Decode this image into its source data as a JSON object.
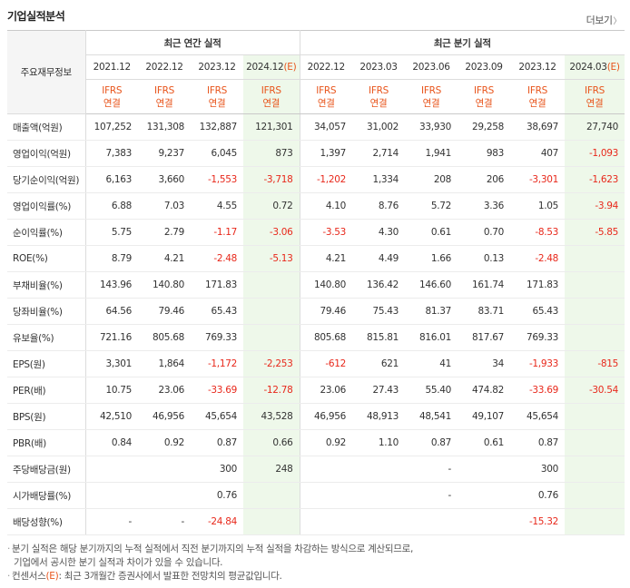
{
  "title": "기업실적분석",
  "more_label": "더보기",
  "header": {
    "row_label": "주요재무정보",
    "annual_group": "최근 연간 실적",
    "quarter_group": "최근 분기 실적",
    "annual_periods": [
      "2021.12",
      "2022.12",
      "2023.12",
      "2024.12"
    ],
    "quarter_periods": [
      "2022.12",
      "2023.03",
      "2023.06",
      "2023.09",
      "2023.12",
      "2024.03"
    ],
    "estimate_mark": "(E)",
    "ifrs": "IFRS",
    "consolidated": "연결"
  },
  "rows": [
    {
      "label": "매출액(억원)",
      "annual": [
        "107,252",
        "131,308",
        "132,887",
        "121,301"
      ],
      "quarter": [
        "34,057",
        "31,002",
        "33,930",
        "29,258",
        "38,697",
        "27,740"
      ]
    },
    {
      "label": "영업이익(억원)",
      "annual": [
        "7,383",
        "9,237",
        "6,045",
        "873"
      ],
      "quarter": [
        "1,397",
        "2,714",
        "1,941",
        "983",
        "407",
        "-1,093"
      ]
    },
    {
      "label": "당기순이익(억원)",
      "annual": [
        "6,163",
        "3,660",
        "-1,553",
        "-3,718"
      ],
      "quarter": [
        "-1,202",
        "1,334",
        "208",
        "206",
        "-3,301",
        "-1,623"
      ]
    },
    {
      "label": "영업이익률(%)",
      "annual": [
        "6.88",
        "7.03",
        "4.55",
        "0.72"
      ],
      "quarter": [
        "4.10",
        "8.76",
        "5.72",
        "3.36",
        "1.05",
        "-3.94"
      ]
    },
    {
      "label": "순이익률(%)",
      "annual": [
        "5.75",
        "2.79",
        "-1.17",
        "-3.06"
      ],
      "quarter": [
        "-3.53",
        "4.30",
        "0.61",
        "0.70",
        "-8.53",
        "-5.85"
      ]
    },
    {
      "label": "ROE(%)",
      "annual": [
        "8.79",
        "4.21",
        "-2.48",
        "-5.13"
      ],
      "quarter": [
        "4.21",
        "4.49",
        "1.66",
        "0.13",
        "-2.48",
        ""
      ]
    },
    {
      "label": "부채비율(%)",
      "annual": [
        "143.96",
        "140.80",
        "171.83",
        ""
      ],
      "quarter": [
        "140.80",
        "136.42",
        "146.60",
        "161.74",
        "171.83",
        ""
      ]
    },
    {
      "label": "당좌비율(%)",
      "annual": [
        "64.56",
        "79.46",
        "65.43",
        ""
      ],
      "quarter": [
        "79.46",
        "75.43",
        "81.37",
        "83.71",
        "65.43",
        ""
      ]
    },
    {
      "label": "유보율(%)",
      "annual": [
        "721.16",
        "805.68",
        "769.33",
        ""
      ],
      "quarter": [
        "805.68",
        "815.81",
        "816.01",
        "817.67",
        "769.33",
        ""
      ]
    },
    {
      "label": "EPS(원)",
      "annual": [
        "3,301",
        "1,864",
        "-1,172",
        "-2,253"
      ],
      "quarter": [
        "-612",
        "621",
        "41",
        "34",
        "-1,933",
        "-815"
      ]
    },
    {
      "label": "PER(배)",
      "annual": [
        "10.75",
        "23.06",
        "-33.69",
        "-12.78"
      ],
      "quarter": [
        "23.06",
        "27.43",
        "55.40",
        "474.82",
        "-33.69",
        "-30.54"
      ]
    },
    {
      "label": "BPS(원)",
      "annual": [
        "42,510",
        "46,956",
        "45,654",
        "43,528"
      ],
      "quarter": [
        "46,956",
        "48,913",
        "48,541",
        "49,107",
        "45,654",
        ""
      ]
    },
    {
      "label": "PBR(배)",
      "annual": [
        "0.84",
        "0.92",
        "0.87",
        "0.66"
      ],
      "quarter": [
        "0.92",
        "1.10",
        "0.87",
        "0.61",
        "0.87",
        ""
      ]
    },
    {
      "label": "주당배당금(원)",
      "annual": [
        "",
        "",
        "300",
        "248"
      ],
      "quarter": [
        "",
        "",
        "-",
        "",
        "300",
        ""
      ]
    },
    {
      "label": "시가배당률(%)",
      "annual": [
        "",
        "",
        "0.76",
        ""
      ],
      "quarter": [
        "",
        "",
        "-",
        "",
        "0.76",
        ""
      ]
    },
    {
      "label": "배당성향(%)",
      "annual": [
        "-",
        "-",
        "-24.84",
        ""
      ],
      "quarter": [
        "",
        "",
        "",
        "",
        "-15.32",
        ""
      ]
    }
  ],
  "notes": {
    "line1": "분기 실적은 해당 분기까지의 누적 실적에서 직전 분기까지의 누적 실적을 차감하는 방식으로 계산되므로,",
    "line2": "기업에서 공시한 분기 실적과 차이가 있을 수 있습니다.",
    "line3_prefix": "컨센서스",
    "line3_mark": "(E)",
    "line3_suffix": ": 최근 3개월간 증권사에서 발표한 전망치의 평균값입니다."
  },
  "colors": {
    "accent_orange": "#e8541b",
    "negative_red": "#e8281b",
    "estimate_bg": "#eef8ea",
    "header_bg": "#f5f5f5"
  }
}
